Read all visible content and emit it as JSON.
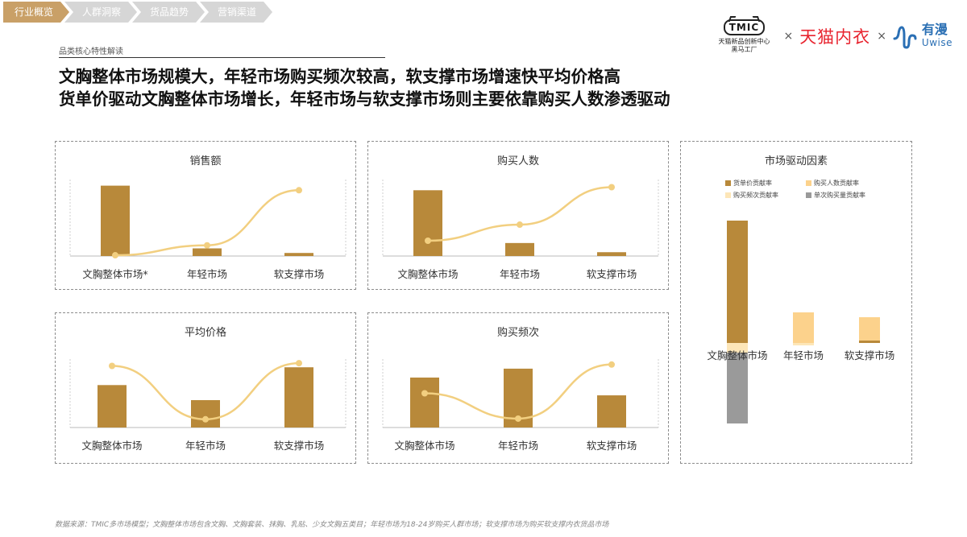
{
  "nav": {
    "items": [
      {
        "label": "行业概览",
        "active": true
      },
      {
        "label": "人群洞察",
        "active": false
      },
      {
        "label": "货品趋势",
        "active": false
      },
      {
        "label": "营销渠道",
        "active": false
      }
    ]
  },
  "logos": {
    "tmic_badge": "TMIC",
    "tmic_sub": "天猫新品创新中心",
    "tmic_sub2": "黑马工厂",
    "separator": "×",
    "tmall": "天猫内衣",
    "uwise_cn": "有漫",
    "uwise_en": "Uwise"
  },
  "section_label": "品类核心特性解读",
  "headline": {
    "line1": "文胸整体市场规模大，年轻市场购买频次较高，软支撑市场增速快平均价格高",
    "line2": "货单价驱动文胸整体市场增长，年轻市场与软支撑市场则主要依靠购买人数渗透驱动"
  },
  "colors": {
    "bar": "#b8893a",
    "line": "#f2cf80",
    "light": "#fcd28c",
    "gray": "#9a9a9a"
  },
  "chart_data": [
    {
      "type": "bar",
      "title": "销售额",
      "categories": [
        "文胸整体市场*",
        "年轻市场",
        "软支撑市场"
      ],
      "values": [
        92,
        10,
        4
      ],
      "line_values": [
        1,
        14,
        86
      ],
      "ylim": [
        0,
        100
      ]
    },
    {
      "type": "bar",
      "title": "购买人数",
      "categories": [
        "文胸整体市场",
        "年轻市场",
        "软支撑市场"
      ],
      "values": [
        86,
        17,
        5
      ],
      "line_values": [
        20,
        41,
        90
      ],
      "ylim": [
        0,
        100
      ]
    },
    {
      "type": "bar",
      "title": "平均价格",
      "categories": [
        "文胸整体市场",
        "年轻市场",
        "软支撑市场"
      ],
      "values": [
        62,
        40,
        88
      ],
      "line_values": [
        90,
        12,
        94
      ],
      "ylim": [
        0,
        100
      ]
    },
    {
      "type": "bar",
      "title": "购买频次",
      "categories": [
        "文胸整体市场",
        "年轻市场",
        "软支撑市场"
      ],
      "values": [
        73,
        86,
        47
      ],
      "line_values": [
        50,
        13,
        92
      ],
      "ylim": [
        0,
        100
      ]
    },
    {
      "type": "bar",
      "stacked": true,
      "title": "市场驱动因素",
      "categories": [
        "文胸整体市场",
        "年轻市场",
        "软支撑市场"
      ],
      "legend": [
        {
          "name": "货单价贡献率",
          "color": "#b8893a"
        },
        {
          "name": "购买人数贡献率",
          "color": "#fcd28c"
        },
        {
          "name": "购买频次贡献率",
          "color": "#fde6b8"
        },
        {
          "name": "单次购买量贡献率",
          "color": "#9a9a9a"
        }
      ],
      "series": [
        {
          "name": "货单价贡献率",
          "values": [
            152,
            0,
            3
          ]
        },
        {
          "name": "购买人数贡献率",
          "values": [
            0,
            38,
            29
          ]
        },
        {
          "name": "购买频次贡献率",
          "values": [
            -12,
            -3,
            0
          ]
        },
        {
          "name": "单次购买量贡献率",
          "values": [
            -88,
            0,
            0
          ]
        }
      ],
      "ylim": [
        -100,
        160
      ]
    }
  ],
  "source": "数据来源：TMIC多市场模型；文胸整体市场包含文胸、文胸套装、抹胸、乳贴、少女文胸五类目；年轻市场为18-24岁购买人群市场；软支撑市场为购买软支撑内衣货品市场"
}
